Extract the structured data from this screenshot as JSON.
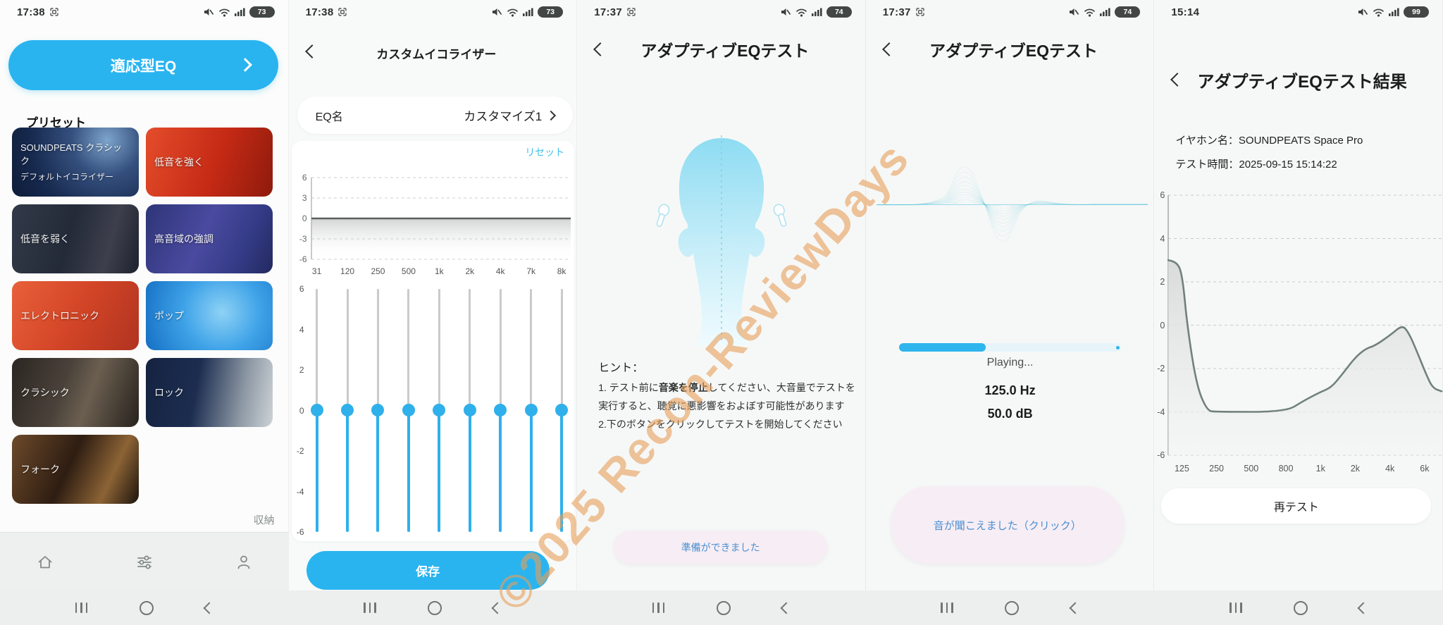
{
  "watermark": "©2025 Recon-ReviewDays",
  "panels": {
    "presets": {
      "status": {
        "time": "17:38",
        "battery": "73"
      },
      "adaptive_button": "適応型EQ",
      "section_title": "プリセット",
      "tiles": [
        {
          "label": "SOUNDPEATS クラシック",
          "sub": "デフォルトイコライザー"
        },
        {
          "label": "低音を強く"
        },
        {
          "label": "低音を弱く"
        },
        {
          "label": "高音域の強調"
        },
        {
          "label": "エレクトロニック"
        },
        {
          "label": "ポップ"
        },
        {
          "label": "クラシック"
        },
        {
          "label": "ロック"
        },
        {
          "label": "フォーク"
        }
      ],
      "collapse_label": "収納"
    },
    "custom_eq": {
      "status": {
        "time": "17:38",
        "battery": "73"
      },
      "title": "カスタムイコライザー",
      "eq_name_label": "EQ名",
      "eq_name_value": "カスタマイズ1",
      "reset_label": "リセット",
      "save_label": "保存"
    },
    "test_intro": {
      "status": {
        "time": "17:37",
        "battery": "74"
      },
      "title": "アダプティブEQテスト",
      "hint_title": "ヒント：",
      "hint1_pre": "1. テスト前に",
      "hint1_bold": "音楽を停止",
      "hint1_post": "してください、大音量でテストを実行すると、聴覚に悪影響をおよぼす可能性があります",
      "hint2": "2.下のボタンをクリックしてテストを開始してください",
      "ready_button": "準備ができました"
    },
    "test_playing": {
      "status": {
        "time": "17:37",
        "battery": "74"
      },
      "title": "アダプティブEQテスト",
      "playing_label": "Playing...",
      "frequency": "125.0 Hz",
      "level": "50.0 dB",
      "heard_button": "音が聞こえました（クリック）"
    },
    "result": {
      "status": {
        "time": "15:14",
        "battery": "99"
      },
      "title": "アダプティブEQテスト結果",
      "earphone_line": "イヤホン名：SOUNDPEATS Space Pro",
      "tested_line": "テスト時間：2025-09-15 15:14:22",
      "retest_button": "再テスト"
    }
  },
  "chart_data": [
    {
      "id": "custom_eq_response",
      "type": "line",
      "title": "カスタムイコライザー周波数特性",
      "x_ticks": [
        "31",
        "120",
        "250",
        "500",
        "1k",
        "2k",
        "4k",
        "7k",
        "8k"
      ],
      "y_ticks": [
        "6",
        "3",
        "0",
        "-3",
        "-6"
      ],
      "ylim": [
        -6,
        6
      ],
      "values": [
        0,
        0,
        0,
        0,
        0,
        0,
        0,
        0,
        0
      ],
      "grid": "dashed-horizontal",
      "note": "flat 0 dB response line with gray fill below"
    },
    {
      "id": "custom_eq_sliders",
      "type": "slider-bank",
      "bands": [
        "31",
        "120",
        "250",
        "500",
        "1k",
        "2k",
        "4k",
        "7k",
        "8k"
      ],
      "gains_db": [
        0,
        0,
        0,
        0,
        0,
        0,
        0,
        0,
        0
      ],
      "y_ticks": [
        "6",
        "4",
        "2",
        "0",
        "-2",
        "-4",
        "-6"
      ],
      "ylim": [
        -6,
        6
      ]
    },
    {
      "id": "adaptive_result",
      "type": "area",
      "x_ticks": [
        "125",
        "250",
        "500",
        "800",
        "1k",
        "2k",
        "4k",
        "6k"
      ],
      "y_ticks": [
        "6",
        "4",
        "2",
        "0",
        "-2",
        "-4",
        "-6"
      ],
      "ylim": [
        -6,
        6
      ],
      "x_unit": "tick-index",
      "y_unit": "dB",
      "points": [
        [
          -0.36,
          3.0
        ],
        [
          -0.1,
          2.95
        ],
        [
          0.05,
          2.2
        ],
        [
          0.18,
          0.0
        ],
        [
          0.45,
          -2.8
        ],
        [
          0.75,
          -3.95
        ],
        [
          1.0,
          -4.0
        ],
        [
          3.0,
          -4.0
        ],
        [
          3.5,
          -3.5
        ],
        [
          3.97,
          -3.1
        ],
        [
          4.3,
          -2.88
        ],
        [
          4.6,
          -2.3
        ],
        [
          4.98,
          -1.5
        ],
        [
          5.3,
          -1.07
        ],
        [
          5.55,
          -0.95
        ],
        [
          6.0,
          -0.45
        ],
        [
          6.33,
          0.0
        ],
        [
          6.5,
          -0.3
        ],
        [
          6.7,
          -1.0
        ],
        [
          7.0,
          -2.2
        ],
        [
          7.2,
          -2.9
        ],
        [
          7.46,
          -3.05
        ]
      ]
    },
    {
      "id": "test_progress",
      "type": "progress",
      "value": 0.39
    }
  ]
}
